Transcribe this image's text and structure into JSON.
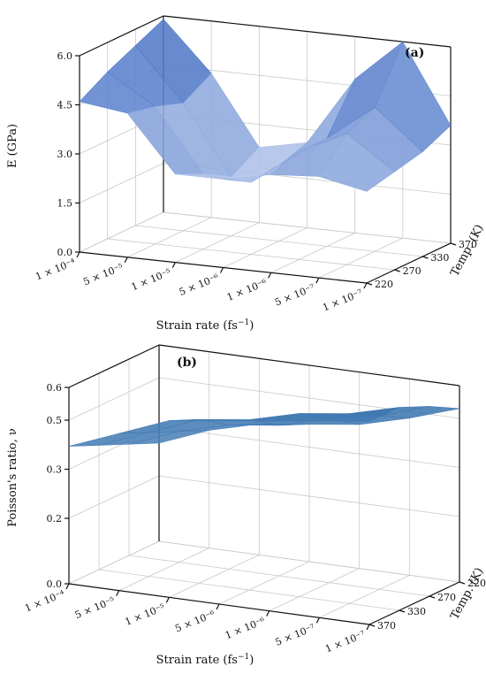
{
  "chart_data": [
    {
      "type": "surface",
      "panel_label": "(a)",
      "zlabel": "E (GPa)",
      "xlabel": "Strain rate  (fs",
      "xlabel_sup": "−1",
      "xlabel_close": ")",
      "ylabel": "Temp. (K)",
      "z_ticks": [
        "0.0",
        "1.5",
        "3.0",
        "4.5",
        "6.0"
      ],
      "z_range": [
        0,
        6
      ],
      "x_ticks": [
        "1 × 10⁻⁴",
        "5 × 10⁻⁵",
        "1 × 10⁻⁵",
        "5 × 10⁻⁶",
        "1 × 10⁻⁶",
        "5 × 10⁻⁷",
        "1 × 10⁻⁷"
      ],
      "y_ticks": [
        "220",
        "270",
        "330",
        "370"
      ],
      "grid": true,
      "surface_colors": [
        "#2f5fbe",
        "#e6ecfa"
      ],
      "z": [
        [
          5.9,
          4.4,
          2.3,
          2.6,
          4.7,
          6.0,
          3.6
        ],
        [
          5.5,
          3.9,
          1.8,
          2.3,
          3.3,
          4.4,
          3.2
        ],
        [
          5.1,
          4.2,
          2.3,
          2.2,
          3.3,
          4.0,
          3.0
        ],
        [
          4.6,
          4.4,
          2.7,
          2.7,
          3.0,
          3.1,
          2.8
        ]
      ]
    },
    {
      "type": "surface",
      "panel_label": "(b)",
      "zlabel": "Poisson's ratio, ν",
      "xlabel": "Strain rate  (fs",
      "xlabel_sup": "−1",
      "xlabel_close": ")",
      "ylabel": "Temp. (K)",
      "z_ticks": [
        "0.0",
        "0.2",
        "0.3",
        "0.5",
        "0.6"
      ],
      "z_range": [
        0,
        0.6
      ],
      "x_ticks": [
        "1 × 10⁻⁴",
        "5 × 10⁻⁵",
        "1 × 10⁻⁵",
        "5 × 10⁻⁶",
        "1 × 10⁻⁶",
        "5 × 10⁻⁷",
        "1 × 10⁻⁷"
      ],
      "y_ticks": [
        "370",
        "330",
        "270",
        "220"
      ],
      "grid": true,
      "surface_colors": [
        "#3d76b0",
        "#5b8fc2"
      ],
      "z": [
        [
          0.3,
          0.36,
          0.4,
          0.42,
          0.44,
          0.48,
          0.53
        ],
        [
          0.34,
          0.4,
          0.44,
          0.46,
          0.5,
          0.53,
          0.58
        ],
        [
          0.38,
          0.44,
          0.5,
          0.52,
          0.56,
          0.58,
          0.62
        ],
        [
          0.42,
          0.48,
          0.54,
          0.56,
          0.58,
          0.6,
          0.62
        ]
      ]
    }
  ]
}
